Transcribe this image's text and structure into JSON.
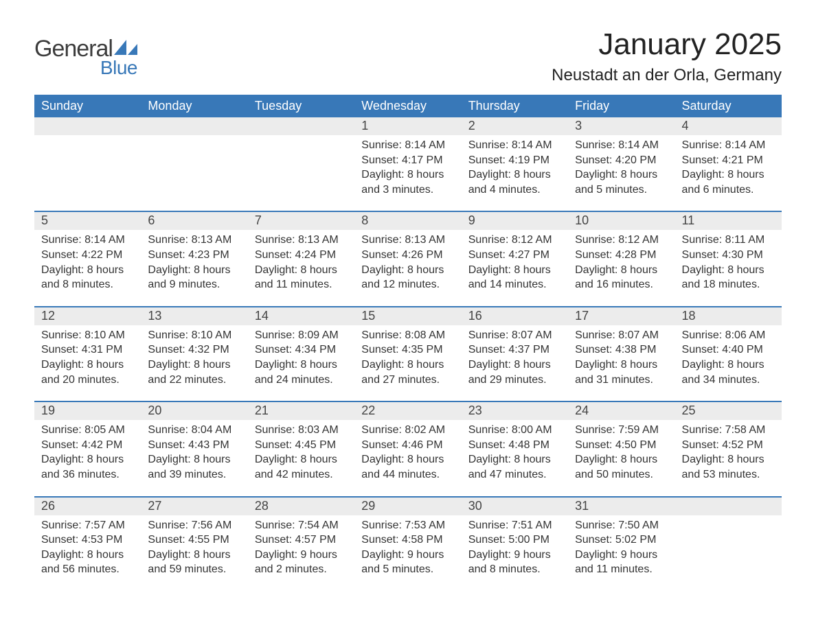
{
  "brand": {
    "word1": "General",
    "word2": "Blue",
    "text_color": "#3c3c3c",
    "accent_color": "#3878b8"
  },
  "title": "January 2025",
  "location": "Neustadt an der Orla, Germany",
  "colors": {
    "header_bg": "#3878b8",
    "header_text": "#ffffff",
    "daynum_bg": "#ececec",
    "body_bg": "#ffffff",
    "text": "#333333",
    "rule": "#3878b8"
  },
  "typography": {
    "title_fontsize": 44,
    "location_fontsize": 24,
    "weekday_fontsize": 18,
    "daynum_fontsize": 18,
    "cell_fontsize": 16
  },
  "layout": {
    "columns": 7,
    "rows": 5,
    "first_day_column_index": 3
  },
  "weekdays": [
    "Sunday",
    "Monday",
    "Tuesday",
    "Wednesday",
    "Thursday",
    "Friday",
    "Saturday"
  ],
  "weeks": [
    [
      null,
      null,
      null,
      {
        "day": "1",
        "sunrise": "Sunrise: 8:14 AM",
        "sunset": "Sunset: 4:17 PM",
        "daylight1": "Daylight: 8 hours",
        "daylight2": "and 3 minutes."
      },
      {
        "day": "2",
        "sunrise": "Sunrise: 8:14 AM",
        "sunset": "Sunset: 4:19 PM",
        "daylight1": "Daylight: 8 hours",
        "daylight2": "and 4 minutes."
      },
      {
        "day": "3",
        "sunrise": "Sunrise: 8:14 AM",
        "sunset": "Sunset: 4:20 PM",
        "daylight1": "Daylight: 8 hours",
        "daylight2": "and 5 minutes."
      },
      {
        "day": "4",
        "sunrise": "Sunrise: 8:14 AM",
        "sunset": "Sunset: 4:21 PM",
        "daylight1": "Daylight: 8 hours",
        "daylight2": "and 6 minutes."
      }
    ],
    [
      {
        "day": "5",
        "sunrise": "Sunrise: 8:14 AM",
        "sunset": "Sunset: 4:22 PM",
        "daylight1": "Daylight: 8 hours",
        "daylight2": "and 8 minutes."
      },
      {
        "day": "6",
        "sunrise": "Sunrise: 8:13 AM",
        "sunset": "Sunset: 4:23 PM",
        "daylight1": "Daylight: 8 hours",
        "daylight2": "and 9 minutes."
      },
      {
        "day": "7",
        "sunrise": "Sunrise: 8:13 AM",
        "sunset": "Sunset: 4:24 PM",
        "daylight1": "Daylight: 8 hours",
        "daylight2": "and 11 minutes."
      },
      {
        "day": "8",
        "sunrise": "Sunrise: 8:13 AM",
        "sunset": "Sunset: 4:26 PM",
        "daylight1": "Daylight: 8 hours",
        "daylight2": "and 12 minutes."
      },
      {
        "day": "9",
        "sunrise": "Sunrise: 8:12 AM",
        "sunset": "Sunset: 4:27 PM",
        "daylight1": "Daylight: 8 hours",
        "daylight2": "and 14 minutes."
      },
      {
        "day": "10",
        "sunrise": "Sunrise: 8:12 AM",
        "sunset": "Sunset: 4:28 PM",
        "daylight1": "Daylight: 8 hours",
        "daylight2": "and 16 minutes."
      },
      {
        "day": "11",
        "sunrise": "Sunrise: 8:11 AM",
        "sunset": "Sunset: 4:30 PM",
        "daylight1": "Daylight: 8 hours",
        "daylight2": "and 18 minutes."
      }
    ],
    [
      {
        "day": "12",
        "sunrise": "Sunrise: 8:10 AM",
        "sunset": "Sunset: 4:31 PM",
        "daylight1": "Daylight: 8 hours",
        "daylight2": "and 20 minutes."
      },
      {
        "day": "13",
        "sunrise": "Sunrise: 8:10 AM",
        "sunset": "Sunset: 4:32 PM",
        "daylight1": "Daylight: 8 hours",
        "daylight2": "and 22 minutes."
      },
      {
        "day": "14",
        "sunrise": "Sunrise: 8:09 AM",
        "sunset": "Sunset: 4:34 PM",
        "daylight1": "Daylight: 8 hours",
        "daylight2": "and 24 minutes."
      },
      {
        "day": "15",
        "sunrise": "Sunrise: 8:08 AM",
        "sunset": "Sunset: 4:35 PM",
        "daylight1": "Daylight: 8 hours",
        "daylight2": "and 27 minutes."
      },
      {
        "day": "16",
        "sunrise": "Sunrise: 8:07 AM",
        "sunset": "Sunset: 4:37 PM",
        "daylight1": "Daylight: 8 hours",
        "daylight2": "and 29 minutes."
      },
      {
        "day": "17",
        "sunrise": "Sunrise: 8:07 AM",
        "sunset": "Sunset: 4:38 PM",
        "daylight1": "Daylight: 8 hours",
        "daylight2": "and 31 minutes."
      },
      {
        "day": "18",
        "sunrise": "Sunrise: 8:06 AM",
        "sunset": "Sunset: 4:40 PM",
        "daylight1": "Daylight: 8 hours",
        "daylight2": "and 34 minutes."
      }
    ],
    [
      {
        "day": "19",
        "sunrise": "Sunrise: 8:05 AM",
        "sunset": "Sunset: 4:42 PM",
        "daylight1": "Daylight: 8 hours",
        "daylight2": "and 36 minutes."
      },
      {
        "day": "20",
        "sunrise": "Sunrise: 8:04 AM",
        "sunset": "Sunset: 4:43 PM",
        "daylight1": "Daylight: 8 hours",
        "daylight2": "and 39 minutes."
      },
      {
        "day": "21",
        "sunrise": "Sunrise: 8:03 AM",
        "sunset": "Sunset: 4:45 PM",
        "daylight1": "Daylight: 8 hours",
        "daylight2": "and 42 minutes."
      },
      {
        "day": "22",
        "sunrise": "Sunrise: 8:02 AM",
        "sunset": "Sunset: 4:46 PM",
        "daylight1": "Daylight: 8 hours",
        "daylight2": "and 44 minutes."
      },
      {
        "day": "23",
        "sunrise": "Sunrise: 8:00 AM",
        "sunset": "Sunset: 4:48 PM",
        "daylight1": "Daylight: 8 hours",
        "daylight2": "and 47 minutes."
      },
      {
        "day": "24",
        "sunrise": "Sunrise: 7:59 AM",
        "sunset": "Sunset: 4:50 PM",
        "daylight1": "Daylight: 8 hours",
        "daylight2": "and 50 minutes."
      },
      {
        "day": "25",
        "sunrise": "Sunrise: 7:58 AM",
        "sunset": "Sunset: 4:52 PM",
        "daylight1": "Daylight: 8 hours",
        "daylight2": "and 53 minutes."
      }
    ],
    [
      {
        "day": "26",
        "sunrise": "Sunrise: 7:57 AM",
        "sunset": "Sunset: 4:53 PM",
        "daylight1": "Daylight: 8 hours",
        "daylight2": "and 56 minutes."
      },
      {
        "day": "27",
        "sunrise": "Sunrise: 7:56 AM",
        "sunset": "Sunset: 4:55 PM",
        "daylight1": "Daylight: 8 hours",
        "daylight2": "and 59 minutes."
      },
      {
        "day": "28",
        "sunrise": "Sunrise: 7:54 AM",
        "sunset": "Sunset: 4:57 PM",
        "daylight1": "Daylight: 9 hours",
        "daylight2": "and 2 minutes."
      },
      {
        "day": "29",
        "sunrise": "Sunrise: 7:53 AM",
        "sunset": "Sunset: 4:58 PM",
        "daylight1": "Daylight: 9 hours",
        "daylight2": "and 5 minutes."
      },
      {
        "day": "30",
        "sunrise": "Sunrise: 7:51 AM",
        "sunset": "Sunset: 5:00 PM",
        "daylight1": "Daylight: 9 hours",
        "daylight2": "and 8 minutes."
      },
      {
        "day": "31",
        "sunrise": "Sunrise: 7:50 AM",
        "sunset": "Sunset: 5:02 PM",
        "daylight1": "Daylight: 9 hours",
        "daylight2": "and 11 minutes."
      },
      null
    ]
  ]
}
